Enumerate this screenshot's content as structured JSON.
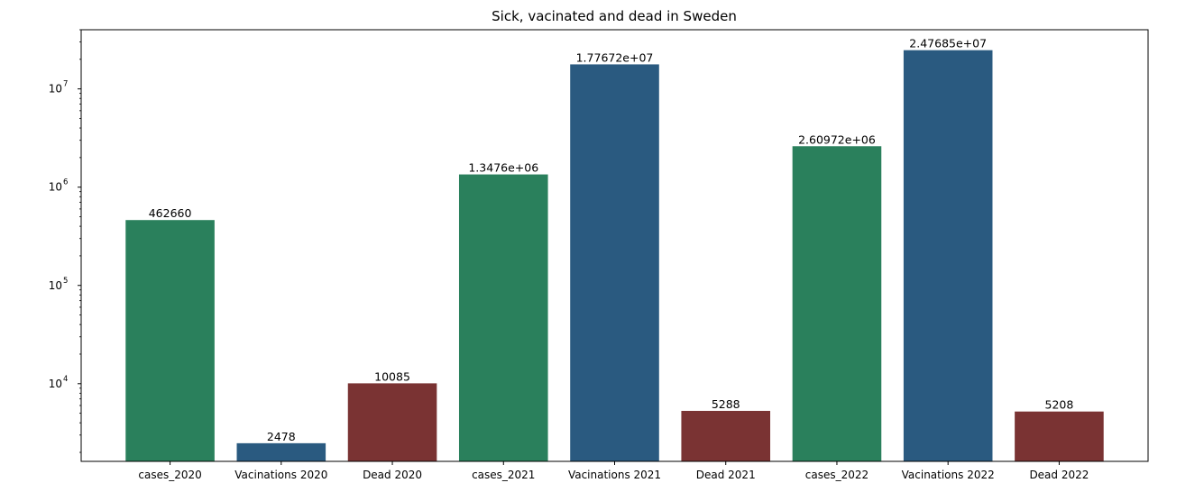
{
  "chart_data": {
    "type": "bar",
    "title": "Sick, vacinated and dead in Sweden",
    "xlabel": "",
    "ylabel": "",
    "yscale": "log",
    "ylim": [
      1620,
      40000000
    ],
    "grid": false,
    "categories": [
      "cases_2020",
      "Vacinations 2020",
      "Dead 2020",
      "cases_2021",
      "Vacinations 2021",
      "Dead 2021",
      "cases_2022",
      "Vacinations 2022",
      "Dead 2022"
    ],
    "values": [
      462660,
      2478,
      10085,
      1347600,
      17767200,
      5288,
      2609720,
      24768500,
      5208
    ],
    "data_labels": [
      "462660",
      "2478",
      "10085",
      "1.3476e+06",
      "1.77672e+07",
      "5288",
      "2.60972e+06",
      "2.47685e+07",
      "5208"
    ],
    "bar_colors": [
      "#2a805c",
      "#2a5a80",
      "#7a3333",
      "#2a805c",
      "#2a5a80",
      "#7a3333",
      "#2a805c",
      "#2a5a80",
      "#7a3333"
    ],
    "y_ticks": [
      {
        "value": 10000,
        "base": "10",
        "exp": "4"
      },
      {
        "value": 100000,
        "base": "10",
        "exp": "5"
      },
      {
        "value": 1000000,
        "base": "10",
        "exp": "6"
      },
      {
        "value": 10000000,
        "base": "10",
        "exp": "7"
      }
    ]
  }
}
